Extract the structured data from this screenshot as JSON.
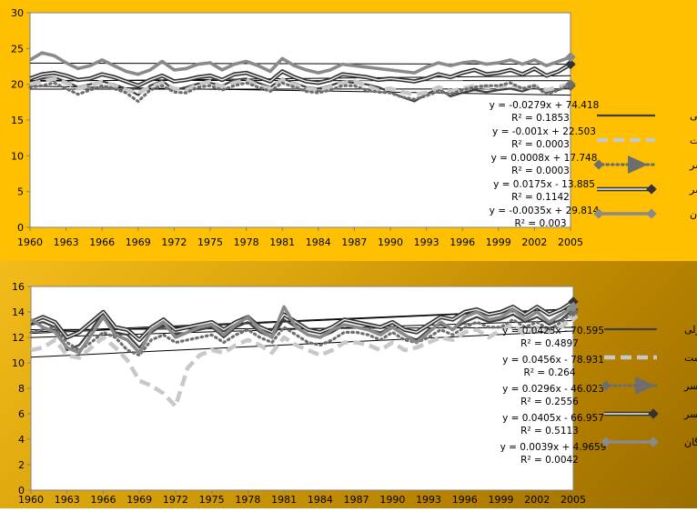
{
  "chart_data": [
    {
      "type": "line",
      "name": "top-chart",
      "x": [
        1960,
        1961,
        1962,
        1963,
        1964,
        1965,
        1966,
        1967,
        1968,
        1969,
        1970,
        1971,
        1972,
        1973,
        1974,
        1975,
        1976,
        1977,
        1978,
        1979,
        1980,
        1981,
        1982,
        1983,
        1984,
        1985,
        1986,
        1987,
        1988,
        1989,
        1990,
        1991,
        1992,
        1993,
        1994,
        1995,
        1996,
        1997,
        1998,
        1999,
        2000,
        2001,
        2002,
        2003,
        2004,
        2005
      ],
      "x_tick_labels": [
        "1960",
        "1963",
        "1966",
        "1969",
        "1972",
        "1975",
        "1978",
        "1981",
        "1984",
        "1987",
        "1990",
        "1993",
        "1996",
        "1999",
        "2002",
        "2005"
      ],
      "y_tick_labels": [
        "0",
        "5",
        "10",
        "15",
        "20",
        "25",
        "30"
      ],
      "ylim": [
        0,
        30
      ],
      "xlim": [
        1960,
        2005
      ],
      "series": [
        {
          "name": "انزلی",
          "style": "solid-dark",
          "color": "#404040",
          "values": [
            20.2,
            20.8,
            21.0,
            20.4,
            19.6,
            20.0,
            20.4,
            20.0,
            19.4,
            18.5,
            19.8,
            20.5,
            19.2,
            19.6,
            20.1,
            20.2,
            19.8,
            20.6,
            20.8,
            20.2,
            19.6,
            20.8,
            20.2,
            19.6,
            19.4,
            19.8,
            20.4,
            20.2,
            20.0,
            19.6,
            18.9,
            18.2,
            17.6,
            18.6,
            19.4,
            18.3,
            18.8,
            19.2,
            18.9,
            19.2,
            19.4,
            19.0,
            19.6,
            18.9,
            19.2,
            19.8
          ]
        },
        {
          "name": "رشت",
          "style": "dashed-light",
          "color": "#c8c8c8",
          "values": [
            20.0,
            20.4,
            20.8,
            20.2,
            19.4,
            19.8,
            20.4,
            19.8,
            19.2,
            18.8,
            19.6,
            20.2,
            19.4,
            19.2,
            20.0,
            20.4,
            19.6,
            20.2,
            20.6,
            19.8,
            19.4,
            20.6,
            20.0,
            19.4,
            19.2,
            19.6,
            20.2,
            20.4,
            19.8,
            19.2,
            19.4,
            18.9,
            18.6,
            18.8,
            19.6,
            19.0,
            19.4,
            19.8,
            19.6,
            19.6,
            19.9,
            19.4,
            19.8,
            19.2,
            19.6,
            20.0
          ]
        },
        {
          "name": "رامسر",
          "style": "dotted",
          "color": "#6e6e6e",
          "values": [
            19.6,
            19.8,
            20.2,
            19.4,
            18.6,
            19.2,
            19.8,
            19.4,
            18.8,
            17.6,
            19.2,
            19.8,
            18.9,
            18.8,
            19.6,
            19.8,
            19.2,
            19.8,
            20.2,
            19.6,
            19.0,
            20.2,
            19.6,
            19.0,
            18.8,
            19.2,
            19.8,
            19.8,
            19.2,
            18.9,
            18.8,
            18.2,
            17.9,
            18.4,
            19.0,
            18.6,
            19.2,
            19.6,
            19.8,
            19.8,
            20.2,
            19.4,
            19.8,
            18.6,
            19.2,
            20.0
          ]
        },
        {
          "name": "بابلسر",
          "style": "double",
          "color": "#333333",
          "values": [
            20.8,
            21.4,
            21.6,
            21.2,
            20.6,
            20.8,
            21.4,
            21.0,
            20.4,
            19.8,
            20.6,
            21.2,
            20.4,
            20.6,
            21.0,
            21.2,
            20.6,
            21.4,
            21.6,
            21.0,
            20.4,
            21.8,
            21.0,
            20.4,
            20.2,
            20.6,
            21.4,
            21.2,
            21.0,
            20.6,
            20.8,
            20.6,
            20.4,
            20.8,
            21.4,
            21.0,
            21.6,
            22.0,
            21.4,
            21.6,
            22.0,
            21.4,
            22.2,
            21.2,
            21.8,
            22.8
          ]
        },
        {
          "name": "گرگان",
          "style": "solid-light",
          "color": "#8a8a8a",
          "values": [
            23.4,
            24.4,
            24.0,
            23.0,
            22.2,
            22.6,
            23.4,
            22.6,
            21.8,
            21.4,
            22.0,
            23.2,
            22.0,
            22.2,
            22.8,
            23.0,
            22.0,
            22.8,
            23.2,
            22.6,
            21.8,
            23.6,
            22.6,
            22.0,
            21.6,
            22.0,
            22.8,
            22.6,
            22.4,
            22.2,
            22.0,
            21.8,
            21.6,
            22.4,
            23.0,
            22.6,
            23.0,
            23.2,
            22.8,
            23.0,
            23.4,
            22.8,
            23.4,
            22.6,
            23.2,
            23.8
          ]
        }
      ],
      "trendlines": [
        {
          "series": "انزلی",
          "slope": -0.0279,
          "intercept": 74.418,
          "equation": "y = -0.0279x + 74.418",
          "r2": "R² = 0.1853"
        },
        {
          "series": "رشت",
          "slope": -0.001,
          "intercept": 22.503,
          "equation": "y = -0.001x + 22.503",
          "r2": "R² = 0.0003"
        },
        {
          "series": "رامسر",
          "slope": 0.0008,
          "intercept": 17.748,
          "equation": "y = 0.0008x + 17.748",
          "r2": "R² = 0.0003"
        },
        {
          "series": "بابلسر",
          "slope": 0.0175,
          "intercept": -13.885,
          "equation": "y = 0.0175x - 13.885",
          "r2": "R² = 0.1142"
        },
        {
          "series": "گرگان",
          "slope": -0.0035,
          "intercept": 29.814,
          "equation": "y = -0.0035x + 29.814",
          "r2": "R² = 0.003"
        }
      ]
    },
    {
      "type": "line",
      "name": "bottom-chart",
      "x": [
        1960,
        1961,
        1962,
        1963,
        1964,
        1965,
        1966,
        1967,
        1968,
        1969,
        1970,
        1971,
        1972,
        1973,
        1974,
        1975,
        1976,
        1977,
        1978,
        1979,
        1980,
        1981,
        1982,
        1983,
        1984,
        1985,
        1986,
        1987,
        1988,
        1989,
        1990,
        1991,
        1992,
        1993,
        1994,
        1995,
        1996,
        1997,
        1998,
        1999,
        2000,
        2001,
        2002,
        2003,
        2004,
        2005
      ],
      "x_tick_labels": [
        "1960",
        "1963",
        "1966",
        "1969",
        "1972",
        "1975",
        "1978",
        "1981",
        "1984",
        "1987",
        "1990",
        "1993",
        "1996",
        "1999",
        "2002",
        "2005"
      ],
      "y_tick_labels": [
        "0",
        "2",
        "4",
        "6",
        "8",
        "10",
        "12",
        "14",
        "16"
      ],
      "ylim": [
        0,
        16
      ],
      "xlim": [
        1960,
        2005
      ],
      "series": [
        {
          "name": "انزلی",
          "style": "solid-dark",
          "color": "#404040",
          "values": [
            13.0,
            13.2,
            12.8,
            11.0,
            11.4,
            12.6,
            14.0,
            12.4,
            12.2,
            11.2,
            12.4,
            13.0,
            12.2,
            12.4,
            12.6,
            12.8,
            12.0,
            12.8,
            13.2,
            12.4,
            12.0,
            13.4,
            12.8,
            12.2,
            12.0,
            12.4,
            13.0,
            12.8,
            12.6,
            12.4,
            12.8,
            12.2,
            11.8,
            12.6,
            13.0,
            12.6,
            13.2,
            13.6,
            13.2,
            13.4,
            13.8,
            13.2,
            13.6,
            13.0,
            13.4,
            14.2
          ]
        },
        {
          "name": "رشت",
          "style": "dashed-light",
          "color": "#c8c8c8",
          "values": [
            11.0,
            11.2,
            11.8,
            10.6,
            10.4,
            11.2,
            12.0,
            11.2,
            10.2,
            8.6,
            8.2,
            7.6,
            6.6,
            9.6,
            10.6,
            11.0,
            10.8,
            11.4,
            11.8,
            11.4,
            10.8,
            12.0,
            11.4,
            11.0,
            10.6,
            11.0,
            11.6,
            11.6,
            11.4,
            11.0,
            11.6,
            11.0,
            11.2,
            11.6,
            12.0,
            11.8,
            12.4,
            12.6,
            12.0,
            12.6,
            13.0,
            12.2,
            12.8,
            12.4,
            12.8,
            13.6
          ]
        },
        {
          "name": "رامسر",
          "style": "dotted",
          "color": "#6e6e6e",
          "values": [
            12.4,
            12.6,
            12.8,
            11.6,
            11.0,
            11.6,
            12.4,
            12.0,
            11.0,
            10.6,
            11.8,
            12.2,
            11.6,
            11.8,
            12.0,
            12.2,
            11.6,
            12.2,
            12.6,
            12.0,
            11.6,
            12.8,
            12.2,
            11.6,
            11.4,
            11.8,
            12.4,
            12.4,
            12.2,
            11.8,
            12.4,
            11.8,
            11.6,
            12.0,
            12.6,
            12.2,
            12.8,
            13.2,
            12.8,
            12.8,
            13.4,
            12.8,
            13.2,
            12.6,
            13.2,
            14.0
          ]
        },
        {
          "name": "بابلسر",
          "style": "double",
          "color": "#333333",
          "values": [
            13.2,
            13.6,
            13.2,
            12.0,
            12.4,
            13.2,
            14.0,
            12.8,
            12.6,
            11.8,
            12.8,
            13.4,
            12.6,
            12.8,
            13.0,
            13.2,
            12.6,
            13.2,
            13.6,
            12.8,
            12.4,
            13.8,
            13.2,
            12.6,
            12.4,
            12.8,
            13.4,
            13.2,
            13.0,
            12.8,
            13.2,
            12.6,
            12.4,
            13.0,
            13.6,
            13.4,
            14.0,
            14.2,
            13.8,
            14.0,
            14.4,
            13.8,
            14.4,
            13.8,
            14.2,
            14.8
          ]
        },
        {
          "name": "گرگان",
          "style": "solid-light",
          "color": "#8a8a8a",
          "values": [
            13.4,
            12.8,
            12.4,
            11.2,
            10.8,
            12.2,
            13.6,
            12.2,
            11.8,
            10.8,
            12.6,
            13.2,
            12.0,
            12.4,
            12.8,
            13.0,
            12.2,
            13.0,
            13.6,
            12.6,
            12.0,
            14.4,
            12.8,
            12.2,
            12.0,
            12.6,
            13.0,
            12.8,
            12.6,
            12.2,
            12.8,
            12.2,
            11.6,
            12.4,
            13.2,
            12.6,
            13.6,
            14.0,
            13.4,
            13.6,
            14.2,
            13.4,
            14.0,
            13.2,
            13.8,
            14.4
          ]
        }
      ],
      "trendlines": [
        {
          "series": "انزلی",
          "slope": 0.0423,
          "intercept": -70.595,
          "equation": "y = 0.0423x - 70.595",
          "r2": "R² = 0.4897"
        },
        {
          "series": "رشت",
          "slope": 0.0456,
          "intercept": -78.931,
          "equation": "y = 0.0456x - 78.931",
          "r2": "R² = 0.264"
        },
        {
          "series": "رامسر",
          "slope": 0.0296,
          "intercept": -46.023,
          "equation": "y = 0.0296x - 46.023",
          "r2": "R² = 0.2556"
        },
        {
          "series": "بابلسر",
          "slope": 0.0405,
          "intercept": -66.957,
          "equation": "y = 0.0405x - 66.957",
          "r2": "R² = 0.5113"
        },
        {
          "series": "گرگان",
          "slope": 0.0039,
          "intercept": 4.9659,
          "equation": "y = 0.0039x + 4.9659",
          "r2": "R² = 0.0042"
        }
      ]
    }
  ]
}
